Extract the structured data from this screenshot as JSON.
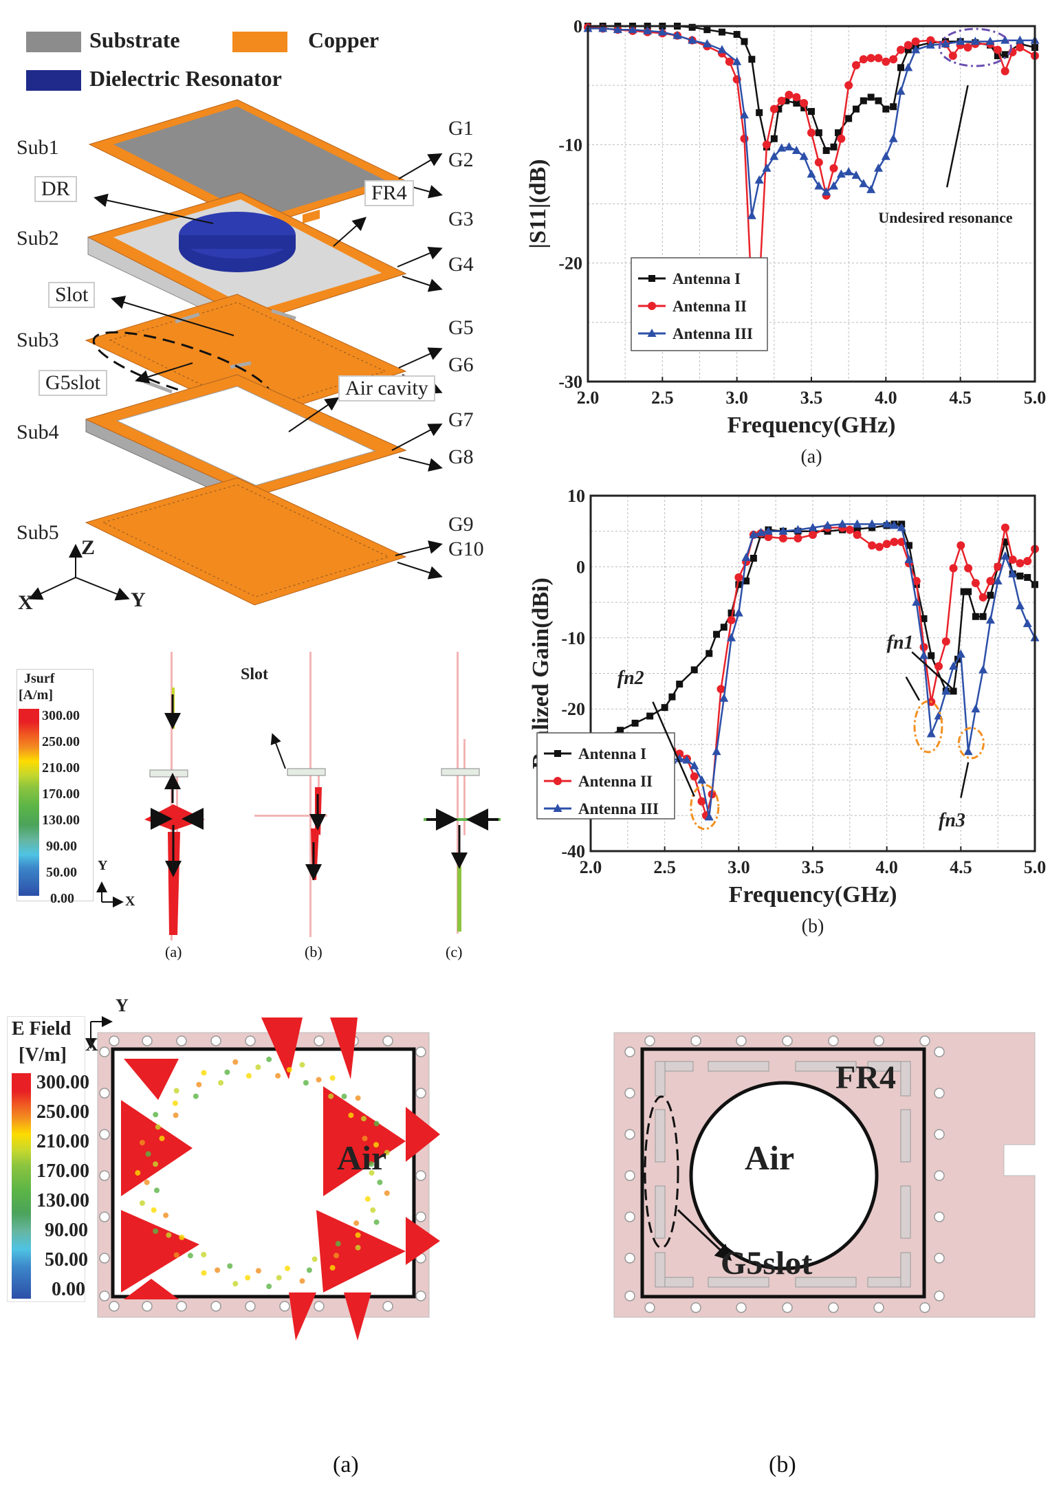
{
  "structure": {
    "legend": [
      {
        "label": "Substrate",
        "color": "#8c8c8c"
      },
      {
        "label": "Copper",
        "color": "#f28a1e"
      },
      {
        "label": "Dielectric Resonator",
        "color": "#1f2a8a"
      }
    ],
    "layers": [
      "Sub1",
      "Sub2",
      "Sub3",
      "Sub4",
      "Sub5"
    ],
    "ground_labels": [
      "G1",
      "G2",
      "G3",
      "G4",
      "G5",
      "G6",
      "G7",
      "G8",
      "G9",
      "G10"
    ],
    "callouts": {
      "dr": "DR",
      "fr4": "FR4",
      "slot": "Slot",
      "g5slot": "G5slot",
      "air_cavity": "Air cavity"
    },
    "axes": {
      "z": "Z",
      "x": "X",
      "y": "Y"
    }
  },
  "jsurf": {
    "title": "Jsurf",
    "unit": "[A/m]",
    "scale": [
      "300.00",
      "250.00",
      "210.00",
      "170.00",
      "130.00",
      "90.00",
      "50.00",
      "0.00"
    ],
    "slot_label": "Slot",
    "axis_y": "Y",
    "axis_x": "X",
    "captions": [
      "(a)",
      "(b)",
      "(c)"
    ]
  },
  "efield": {
    "title": "E Field",
    "unit": "[V/m]",
    "scale": [
      "300.00",
      "250.00",
      "210.00",
      "170.00",
      "130.00",
      "90.00",
      "50.00",
      "0.00"
    ],
    "axis_y": "Y",
    "axis_x": "X",
    "panel_a": {
      "label": "Air",
      "caption": "(a)"
    },
    "panel_b": {
      "label": "Air",
      "fr4": "FR4",
      "slot": "G5slot",
      "caption": "(b)"
    }
  },
  "chart_data": [
    {
      "type": "line",
      "title": "",
      "caption": "(a)",
      "xlabel": "Frequency(GHz)",
      "ylabel": "|S11|(dB)",
      "xlim": [
        2.0,
        5.0
      ],
      "ylim": [
        -30,
        0
      ],
      "xticks": [
        "2.0",
        "2.5",
        "3.0",
        "3.5",
        "4.0",
        "4.5",
        "5.0"
      ],
      "yticks": [
        "0",
        "-10",
        "-20",
        "-30"
      ],
      "grid": true,
      "legend_position": "bottom-right",
      "annotation": "Undesired resonance",
      "series": [
        {
          "name": "Antenna I",
          "color": "#111111",
          "marker": "square",
          "x": [
            2.0,
            2.1,
            2.2,
            2.3,
            2.4,
            2.5,
            2.6,
            2.7,
            2.8,
            2.9,
            3.0,
            3.05,
            3.1,
            3.15,
            3.2,
            3.25,
            3.28,
            3.33,
            3.4,
            3.45,
            3.5,
            3.55,
            3.6,
            3.65,
            3.68,
            3.75,
            3.8,
            3.85,
            3.9,
            3.95,
            4.0,
            4.05,
            4.1,
            4.15,
            4.2,
            4.3,
            4.4,
            4.5,
            4.6,
            4.7,
            4.75,
            4.8,
            4.9,
            5.0
          ],
          "y": [
            0,
            0,
            0,
            0,
            0,
            0,
            0,
            -0.1,
            -0.3,
            -0.5,
            -0.7,
            -1.3,
            -2.8,
            -7.3,
            -10.2,
            -9.5,
            -7.0,
            -6.3,
            -6.5,
            -6.9,
            -7.2,
            -9.0,
            -10.5,
            -10.2,
            -9.0,
            -7.8,
            -7.0,
            -6.3,
            -6.0,
            -6.3,
            -7.0,
            -6.8,
            -3.5,
            -2.0,
            -1.7,
            -1.4,
            -1.3,
            -1.3,
            -1.4,
            -1.6,
            -2.5,
            -2.4,
            -1.5,
            -1.8
          ]
        },
        {
          "name": "Antenna II",
          "color": "#e8222a",
          "marker": "circle",
          "x": [
            2.0,
            2.1,
            2.2,
            2.3,
            2.4,
            2.5,
            2.6,
            2.7,
            2.8,
            2.9,
            2.95,
            3.0,
            3.05,
            3.1,
            3.13,
            3.15,
            3.2,
            3.25,
            3.3,
            3.35,
            3.4,
            3.45,
            3.5,
            3.55,
            3.6,
            3.65,
            3.7,
            3.75,
            3.8,
            3.85,
            3.9,
            3.95,
            4.0,
            4.05,
            4.1,
            4.15,
            4.2,
            4.3,
            4.4,
            4.45,
            4.5,
            4.55,
            4.6,
            4.7,
            4.75,
            4.8,
            4.85,
            4.9,
            5.0
          ],
          "y": [
            -0.1,
            -0.2,
            -0.3,
            -0.4,
            -0.5,
            -0.6,
            -0.8,
            -1.2,
            -1.7,
            -2.3,
            -3.0,
            -4.5,
            -9.5,
            -22.8,
            -25.5,
            -22.0,
            -10.0,
            -7.0,
            -6.3,
            -5.8,
            -6.0,
            -6.5,
            -9.0,
            -11.5,
            -14.3,
            -12.0,
            -9.5,
            -5.0,
            -3.3,
            -2.8,
            -2.7,
            -2.7,
            -3.0,
            -2.8,
            -2.0,
            -1.6,
            -1.3,
            -1.2,
            -1.5,
            -2.5,
            -1.6,
            -1.8,
            -1.5,
            -1.5,
            -2.0,
            -3.8,
            -2.2,
            -1.8,
            -2.5
          ]
        },
        {
          "name": "Antenna III",
          "color": "#2c4fa8",
          "marker": "triangle",
          "x": [
            2.0,
            2.1,
            2.2,
            2.3,
            2.4,
            2.5,
            2.6,
            2.7,
            2.8,
            2.9,
            3.0,
            3.05,
            3.1,
            3.15,
            3.2,
            3.25,
            3.3,
            3.35,
            3.4,
            3.45,
            3.5,
            3.55,
            3.6,
            3.65,
            3.7,
            3.75,
            3.8,
            3.85,
            3.9,
            3.95,
            4.0,
            4.05,
            4.1,
            4.15,
            4.2,
            4.3,
            4.4,
            4.5,
            4.6,
            4.7,
            4.8,
            4.9,
            5.0
          ],
          "y": [
            -0.2,
            -0.2,
            -0.3,
            -0.3,
            -0.4,
            -0.5,
            -0.8,
            -1.2,
            -1.5,
            -2.0,
            -3.0,
            -7.5,
            -16.0,
            -13.0,
            -12.0,
            -11.0,
            -10.3,
            -10.2,
            -10.5,
            -11.0,
            -12.5,
            -13.5,
            -14.0,
            -13.5,
            -12.5,
            -12.3,
            -12.6,
            -13.3,
            -13.8,
            -12.0,
            -11.0,
            -9.5,
            -5.5,
            -3.5,
            -2.0,
            -1.6,
            -1.5,
            -1.3,
            -1.3,
            -1.3,
            -1.2,
            -1.2,
            -1.2
          ]
        }
      ]
    },
    {
      "type": "line",
      "title": "",
      "caption": "(b)",
      "xlabel": "Frequency(GHz)",
      "ylabel": "Realized Gain(dBi)",
      "xlim": [
        2.0,
        5.0
      ],
      "ylim": [
        -40,
        10
      ],
      "xticks": [
        "2.0",
        "2.5",
        "3.0",
        "3.5",
        "4.0",
        "4.5",
        "5.0"
      ],
      "yticks": [
        "10",
        "0",
        "-10",
        "-20",
        "-30",
        "-40"
      ],
      "grid": true,
      "legend_position": "bottom-center",
      "annotations": [
        "fn2",
        "fn1",
        "fn3"
      ],
      "series": [
        {
          "name": "Antenna I",
          "color": "#111111",
          "marker": "square",
          "x": [
            2.0,
            2.05,
            2.1,
            2.2,
            2.3,
            2.4,
            2.5,
            2.55,
            2.6,
            2.7,
            2.8,
            2.85,
            2.9,
            2.95,
            3.0,
            3.05,
            3.1,
            3.15,
            3.2,
            3.3,
            3.4,
            3.5,
            3.6,
            3.7,
            3.8,
            3.9,
            4.0,
            4.05,
            4.1,
            4.15,
            4.2,
            4.25,
            4.3,
            4.4,
            4.45,
            4.48,
            4.52,
            4.55,
            4.6,
            4.65,
            4.7,
            4.75,
            4.8,
            4.85,
            4.9,
            4.95,
            5.0
          ],
          "y": [
            -25,
            -24.5,
            -24,
            -23,
            -22,
            -21,
            -19.8,
            -18.3,
            -16.5,
            -14.5,
            -12.2,
            -9.5,
            -8.5,
            -6.5,
            -2.5,
            -2.0,
            1.2,
            4.5,
            5.2,
            5.0,
            5.0,
            5.0,
            5.0,
            5.2,
            5.3,
            5.5,
            5.8,
            6.0,
            6.0,
            3.0,
            -2.5,
            -7.3,
            -12.5,
            -17.5,
            -17.5,
            -13.0,
            -3.5,
            -3.5,
            -7.0,
            -7.0,
            -4.0,
            0.0,
            3.5,
            -1.0,
            -1.3,
            -1.5,
            -2.5
          ]
        },
        {
          "name": "Antenna II",
          "color": "#e8222a",
          "marker": "circle",
          "x": [
            2.0,
            2.05,
            2.1,
            2.2,
            2.3,
            2.4,
            2.5,
            2.55,
            2.6,
            2.65,
            2.7,
            2.75,
            2.78,
            2.82,
            2.88,
            2.95,
            3.0,
            3.05,
            3.1,
            3.15,
            3.2,
            3.3,
            3.4,
            3.5,
            3.6,
            3.7,
            3.75,
            3.8,
            3.9,
            3.95,
            4.0,
            4.05,
            4.1,
            4.15,
            4.2,
            4.25,
            4.3,
            4.35,
            4.4,
            4.45,
            4.5,
            4.55,
            4.6,
            4.65,
            4.7,
            4.75,
            4.8,
            4.85,
            4.9,
            4.95,
            5.0
          ],
          "y": [
            -28.5,
            -28.3,
            -28,
            -27.3,
            -26.8,
            -26.3,
            -26,
            -25.8,
            -26.3,
            -27,
            -29.5,
            -33,
            -35,
            -32,
            -17.2,
            -7.5,
            -1.5,
            0.7,
            4.5,
            4.7,
            4.2,
            4.0,
            4.0,
            4.5,
            5.5,
            5.5,
            5.2,
            4.5,
            3.0,
            2.8,
            3.2,
            3.5,
            3.5,
            0.5,
            -2.0,
            -11.3,
            -19.0,
            -14,
            -10.5,
            -0.2,
            3.0,
            -0.2,
            -2.3,
            -4.3,
            -2.0,
            0.0,
            5.5,
            1.0,
            0.5,
            0.8,
            2.5
          ]
        },
        {
          "name": "Antenna III",
          "color": "#2c4fa8",
          "marker": "triangle",
          "x": [
            2.0,
            2.05,
            2.1,
            2.2,
            2.3,
            2.4,
            2.5,
            2.55,
            2.6,
            2.65,
            2.7,
            2.75,
            2.8,
            2.85,
            2.9,
            2.95,
            3.0,
            3.05,
            3.1,
            3.15,
            3.2,
            3.3,
            3.4,
            3.5,
            3.6,
            3.7,
            3.8,
            3.9,
            4.0,
            4.05,
            4.1,
            4.15,
            4.2,
            4.25,
            4.3,
            4.35,
            4.4,
            4.45,
            4.5,
            4.55,
            4.6,
            4.65,
            4.7,
            4.75,
            4.8,
            4.85,
            4.9,
            4.95,
            5.0
          ],
          "y": [
            -30.5,
            -30.3,
            -30,
            -29.5,
            -28.8,
            -28.2,
            -27.6,
            -27.2,
            -27,
            -27.2,
            -28,
            -30,
            -35.2,
            -26,
            -18.5,
            -10,
            -6.5,
            1.3,
            4.5,
            4.8,
            5.0,
            5.0,
            5.2,
            5.5,
            5.8,
            6.0,
            6.0,
            6.0,
            6.0,
            5.8,
            5.5,
            1.0,
            -5.0,
            -12.5,
            -23.5,
            -21,
            -17.5,
            -14,
            -12.3,
            -26.0,
            -20.0,
            -14.5,
            -7.5,
            -2.0,
            1.5,
            -1.0,
            -5.5,
            -8.0,
            -10.0
          ]
        }
      ]
    }
  ]
}
